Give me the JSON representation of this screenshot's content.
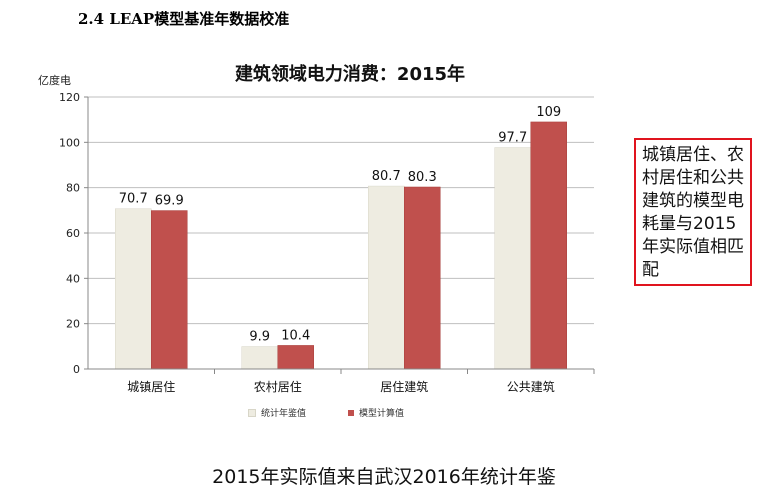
{
  "heading": "2.4 LEAP模型基准年数据校准",
  "note": "城镇居住、农村居住和公共建筑的模型电耗量与2015年实际值相匹配",
  "footer": "2015年实际值来自武汉2016年统计年鉴",
  "colors": {
    "stat": "#eeece1",
    "model": "#c0504d"
  },
  "chart_data": {
    "type": "bar",
    "title": "建筑领域电力消费：2015年",
    "ylabel": "亿度电",
    "xlabel": "",
    "ylim": [
      0,
      120
    ],
    "yticks": [
      0,
      20,
      40,
      60,
      80,
      100,
      120
    ],
    "categories": [
      "城镇居住",
      "农村居住",
      "居住建筑",
      "公共建筑"
    ],
    "series": [
      {
        "name": "统计年鉴值",
        "values": [
          70.7,
          9.9,
          80.7,
          97.7
        ]
      },
      {
        "name": "模型计算值",
        "values": [
          69.9,
          10.4,
          80.3,
          109
        ]
      }
    ],
    "grid": true,
    "legend": "bottom"
  }
}
